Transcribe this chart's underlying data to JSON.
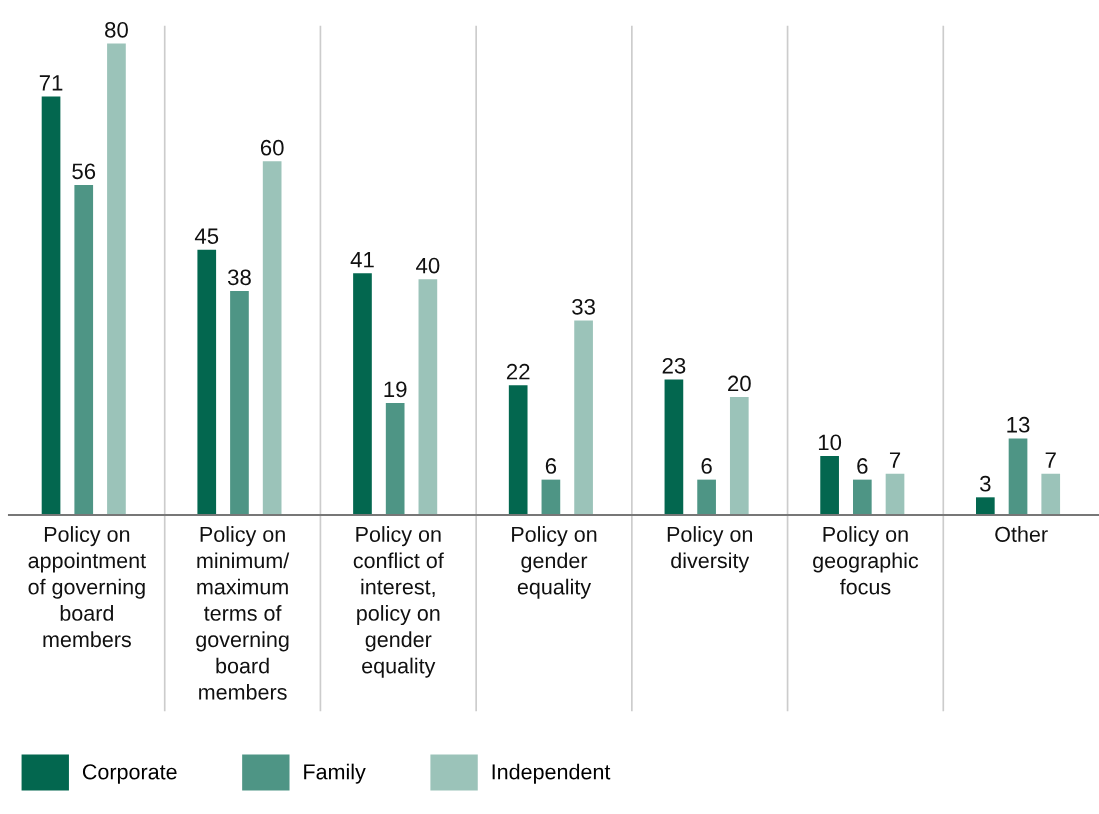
{
  "chart_data": {
    "type": "bar",
    "categories": [
      "Policy on\nappointment\nof governing\nboard\nmembers",
      "Policy on\nminimum/\nmaximum\nterms of\ngoverning\nboard\nmembers",
      "Policy on\nconflict of\ninterest,\npolicy on\ngender\nequality",
      "Policy on\ngender\nequality",
      "Policy on\ndiversity",
      "Policy on\ngeographic\nfocus",
      "Other"
    ],
    "series": [
      {
        "name": "Corporate",
        "color": "#03674f",
        "values": [
          71,
          45,
          41,
          22,
          23,
          10,
          3
        ]
      },
      {
        "name": "Family",
        "color": "#4e9585",
        "values": [
          56,
          38,
          19,
          6,
          6,
          6,
          13
        ]
      },
      {
        "name": "Independent",
        "color": "#9bc3b9",
        "values": [
          80,
          60,
          40,
          33,
          20,
          7,
          7
        ]
      }
    ],
    "tick_labels": "x",
    "data_labels": true,
    "grid": "x",
    "legend": "bottom left"
  }
}
